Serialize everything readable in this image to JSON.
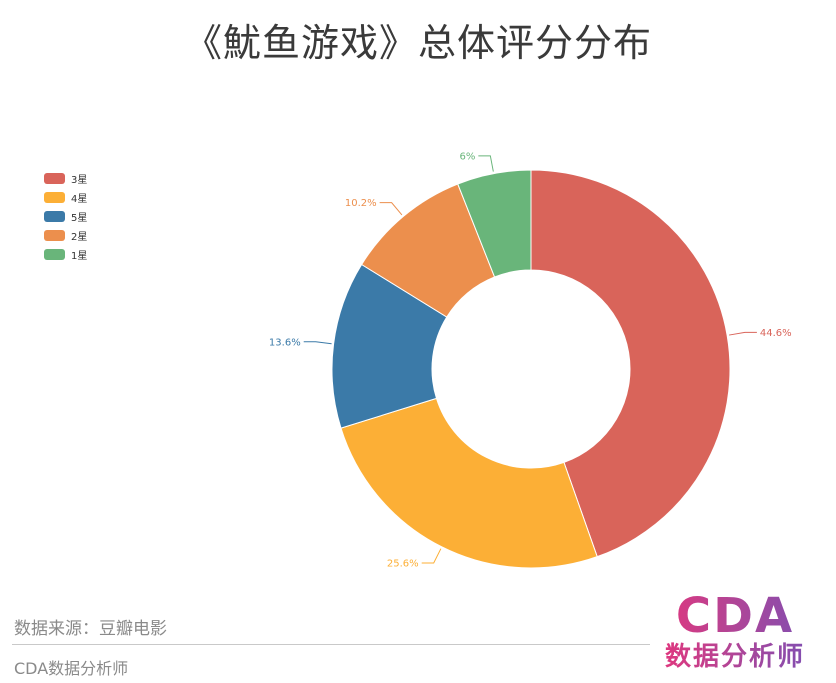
{
  "title": "《魷鱼游戏》总体评分分布",
  "source_label": "数据来源：豆瓣电影",
  "footer_text": "CDA数据分析师",
  "logo": {
    "main": "CDA",
    "sub": "数据分析师"
  },
  "chart_data": {
    "type": "pie",
    "variant": "donut",
    "legend_position": "top-left",
    "legend": [
      "3星",
      "4星",
      "5星",
      "2星",
      "1星"
    ],
    "slices": [
      {
        "name": "3星",
        "value": 44.6,
        "label": "44.6%",
        "color": "#d9645a"
      },
      {
        "name": "4星",
        "value": 25.6,
        "label": "25.6%",
        "color": "#fcaf36"
      },
      {
        "name": "5星",
        "value": 13.6,
        "label": "13.6%",
        "color": "#3b7aa8"
      },
      {
        "name": "2星",
        "value": 10.2,
        "label": "10.2%",
        "color": "#ec8f4d"
      },
      {
        "name": "1星",
        "value": 6,
        "label": "6%",
        "color": "#69b57a"
      }
    ]
  }
}
